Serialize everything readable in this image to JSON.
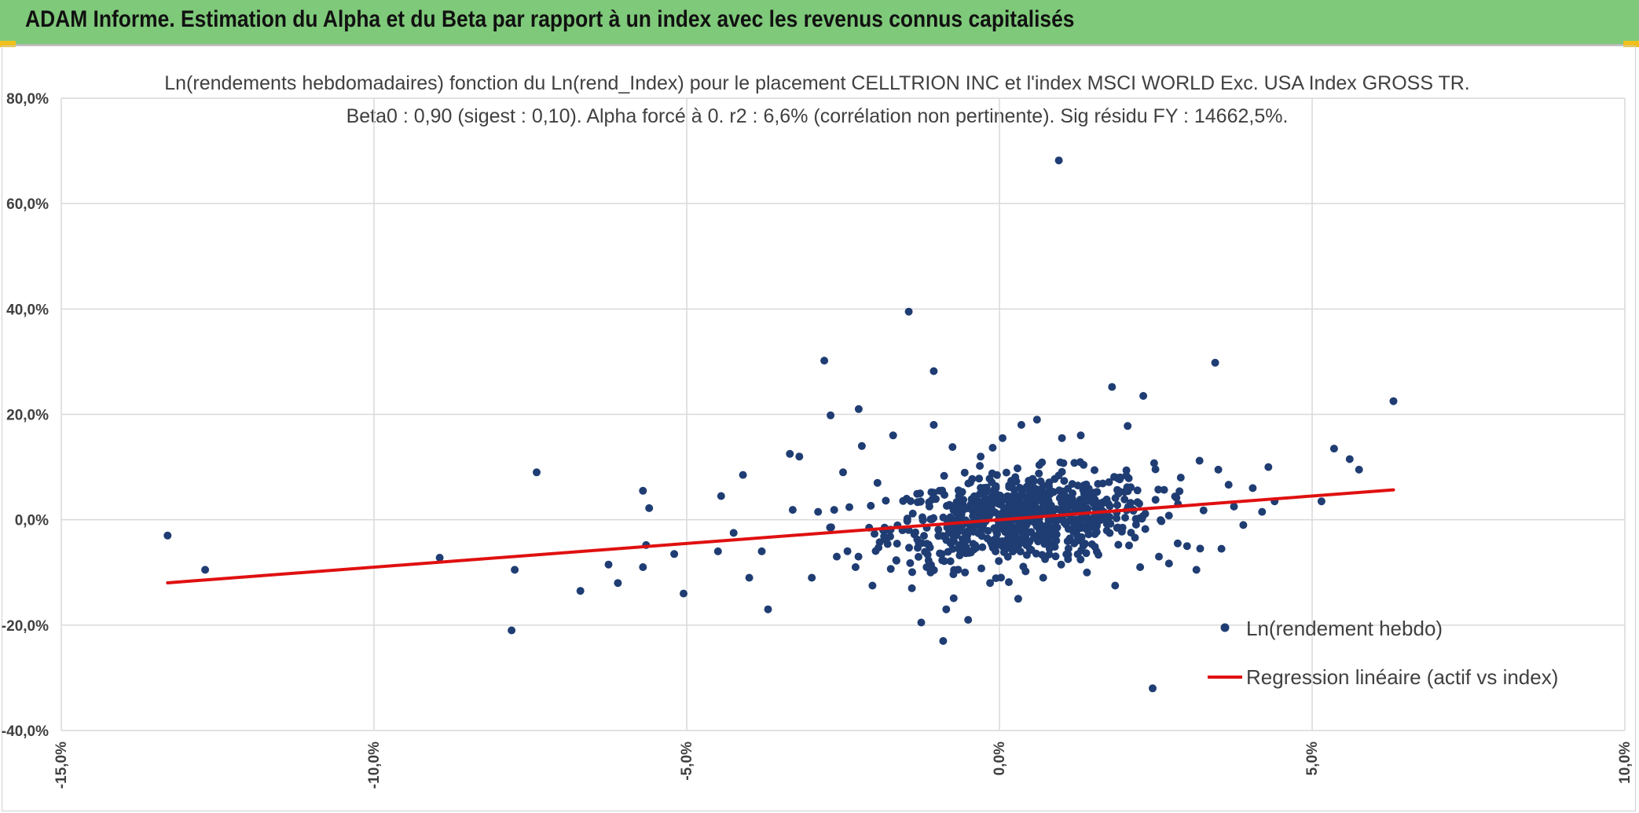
{
  "header": {
    "title": "ADAM Informe. Estimation du Alpha et du Beta par rapport à un index avec les revenus connus capitalisés"
  },
  "colors": {
    "banner": "#7fc97a",
    "points": "#1f3d73",
    "regression": "#e01010",
    "grid": "#d9d9d9",
    "accent": "#f2c01c"
  },
  "chart_data": {
    "type": "scatter",
    "title": "Ln(rendements hebdomadaires) fonction du Ln(rend_Index) pour le placement CELLTRION INC et l'index MSCI WORLD Exc. USA Index GROSS TR.",
    "subtitle": "Beta0 : 0,90 (sigest : 0,10). Alpha forcé à 0. r2 : 6,6% (corrélation non pertinente). Sig résidu FY : 14662,5%.",
    "xlim": [
      -15,
      10
    ],
    "ylim": [
      -40,
      80
    ],
    "x_ticks": [
      "-15,0%",
      "-10,0%",
      "-5,0%",
      "0,0%",
      "5,0%",
      "10,0%"
    ],
    "y_ticks": [
      "80,0%",
      "60,0%",
      "40,0%",
      "20,0%",
      "0,0%",
      "-20,0%",
      "-40,0%"
    ],
    "x_tick_values": [
      -15,
      -10,
      -5,
      0,
      5,
      10
    ],
    "y_tick_values": [
      80,
      60,
      40,
      20,
      0,
      -20,
      -40
    ],
    "grid": true,
    "legend_position": "bottom-right",
    "series": [
      {
        "name": "Ln(rendement hebdo)",
        "kind": "scatter",
        "points": [
          [
            -13.3,
            -3.0
          ],
          [
            -12.7,
            -9.5
          ],
          [
            -8.95,
            -7.2
          ],
          [
            -7.8,
            -21.0
          ],
          [
            -7.75,
            -9.5
          ],
          [
            -7.4,
            9.0
          ],
          [
            -6.7,
            -13.5
          ],
          [
            -6.25,
            -8.5
          ],
          [
            -6.1,
            -12.0
          ],
          [
            -5.7,
            5.5
          ],
          [
            -5.65,
            -4.8
          ],
          [
            -5.6,
            2.2
          ],
          [
            -5.7,
            -9.0
          ],
          [
            -5.2,
            -6.5
          ],
          [
            -5.05,
            -14.0
          ],
          [
            -4.5,
            -6.0
          ],
          [
            -4.45,
            4.5
          ],
          [
            -4.25,
            -2.5
          ],
          [
            -4.1,
            8.5
          ],
          [
            -4.0,
            -11.0
          ],
          [
            -3.8,
            -6.0
          ],
          [
            -3.7,
            -17.0
          ],
          [
            -3.35,
            12.5
          ],
          [
            -3.2,
            12.0
          ],
          [
            -3.0,
            -11.0
          ],
          [
            -2.9,
            1.5
          ],
          [
            -2.8,
            30.2
          ],
          [
            -2.7,
            19.8
          ],
          [
            -2.6,
            -7.0
          ],
          [
            -2.5,
            9.0
          ],
          [
            -2.3,
            -9.0
          ],
          [
            -2.25,
            21.0
          ],
          [
            -2.2,
            14.0
          ],
          [
            -1.95,
            7.0
          ],
          [
            -1.7,
            16.0
          ],
          [
            -1.55,
            -2.0
          ],
          [
            -1.45,
            39.5
          ],
          [
            -1.4,
            -13.0
          ],
          [
            -1.25,
            -19.5
          ],
          [
            -1.1,
            -10.0
          ],
          [
            -1.05,
            28.2
          ],
          [
            -1.05,
            18.0
          ],
          [
            -0.9,
            -23.0
          ],
          [
            -0.85,
            -17.0
          ],
          [
            -0.75,
            13.8
          ],
          [
            -0.55,
            -10.0
          ],
          [
            -0.5,
            -19.0
          ],
          [
            -0.3,
            12.0
          ],
          [
            -0.15,
            -12.0
          ],
          [
            0.05,
            15.5
          ],
          [
            0.3,
            -15.0
          ],
          [
            0.35,
            18.0
          ],
          [
            0.6,
            19.0
          ],
          [
            0.7,
            -11.0
          ],
          [
            0.95,
            68.2
          ],
          [
            1.0,
            15.5
          ],
          [
            1.3,
            16.0
          ],
          [
            1.4,
            -10.0
          ],
          [
            1.8,
            25.2
          ],
          [
            1.85,
            -12.5
          ],
          [
            2.05,
            17.8
          ],
          [
            2.25,
            -9.0
          ],
          [
            2.3,
            23.5
          ],
          [
            2.45,
            -32.0
          ],
          [
            2.55,
            -7.0
          ],
          [
            2.9,
            8.0
          ],
          [
            3.0,
            -5.0
          ],
          [
            3.15,
            -9.5
          ],
          [
            3.2,
            11.2
          ],
          [
            3.45,
            29.8
          ],
          [
            3.5,
            9.5
          ],
          [
            3.55,
            -5.5
          ],
          [
            3.75,
            2.5
          ],
          [
            3.9,
            -1.0
          ],
          [
            4.05,
            6.0
          ],
          [
            4.2,
            1.5
          ],
          [
            4.3,
            10.0
          ],
          [
            4.4,
            3.5
          ],
          [
            5.15,
            3.5
          ],
          [
            5.35,
            13.5
          ],
          [
            5.6,
            11.5
          ],
          [
            5.75,
            9.5
          ],
          [
            6.3,
            22.5
          ]
        ]
      },
      {
        "name": "Regression linéaire (actif vs index)",
        "kind": "line",
        "slope": 0.9,
        "intercept": 0,
        "x_range": [
          -13.3,
          6.3
        ]
      }
    ]
  }
}
